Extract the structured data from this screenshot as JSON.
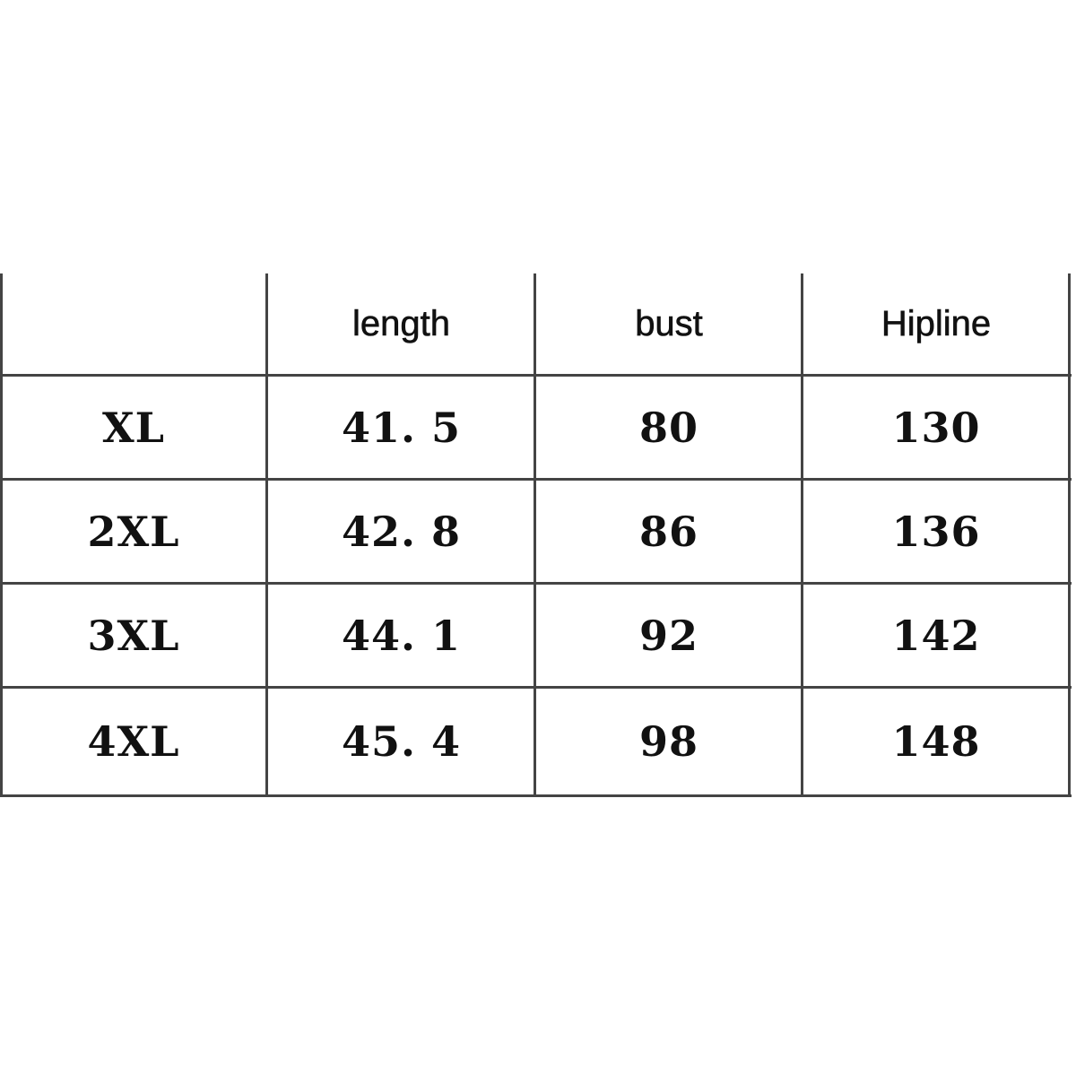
{
  "table": {
    "headers": [
      "",
      "length",
      "bust",
      "Hipline"
    ],
    "rows": [
      [
        "XL",
        "41. 5",
        "80",
        "130"
      ],
      [
        "2XL",
        "42. 8",
        "86",
        "136"
      ],
      [
        "3XL",
        "44. 1",
        "92",
        "142"
      ],
      [
        "4XL",
        "45. 4",
        "98",
        "148"
      ]
    ]
  }
}
